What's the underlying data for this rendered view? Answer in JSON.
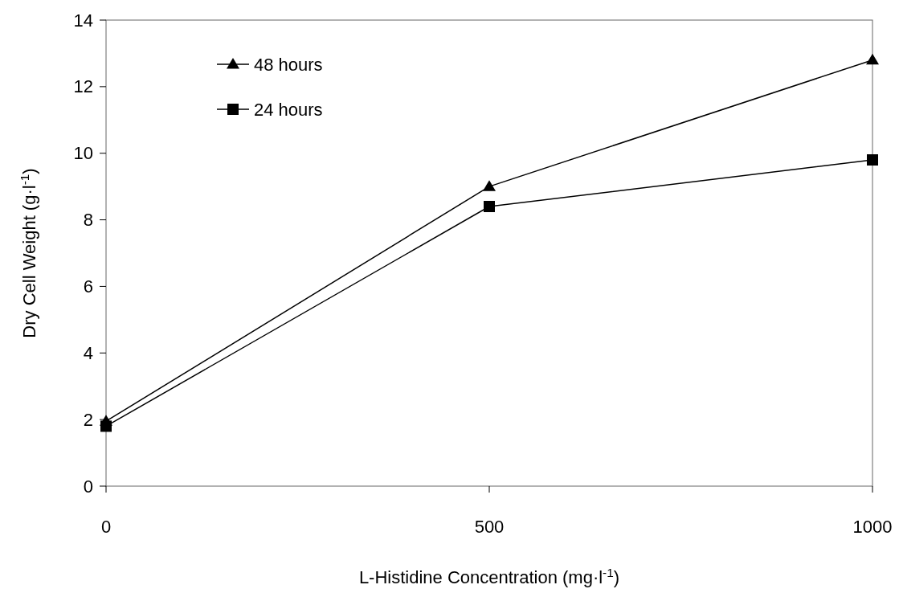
{
  "chart_data": {
    "type": "line",
    "xlabel": "L-Histidine Concentration (mg·l$^{-1}$)",
    "ylabel": "Dry Cell Weight (g·l$^{-1}$)",
    "x": [
      0,
      500,
      1000
    ],
    "xlim": [
      0,
      1000
    ],
    "xticks": [
      0,
      500,
      1000
    ],
    "ylim": [
      0,
      14
    ],
    "yticks": [
      0,
      2,
      4,
      6,
      8,
      10,
      12,
      14
    ],
    "legend": "top left",
    "grid": false,
    "line_style": "solid",
    "series": [
      {
        "name": "48 hours",
        "color": "#000000",
        "marker": "triangle",
        "values": [
          1.95,
          9.0,
          12.8
        ]
      },
      {
        "name": "24 hours",
        "color": "#000000",
        "marker": "square",
        "values": [
          1.8,
          8.4,
          9.8
        ]
      }
    ]
  }
}
